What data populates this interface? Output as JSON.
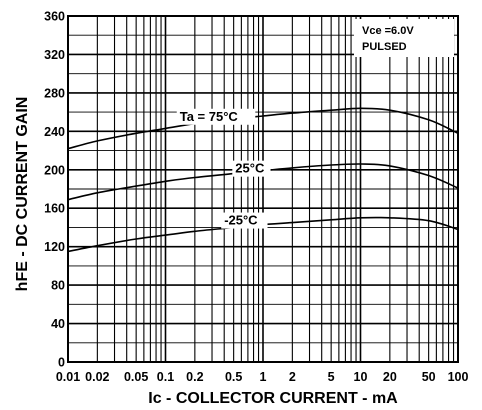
{
  "chart_data": {
    "type": "line",
    "title": "",
    "xlabel": "Ic - COLLECTOR CURRENT - mA",
    "ylabel": "hFE - DC CURRENT GAIN",
    "xscale": "log",
    "xlim": [
      0.01,
      100
    ],
    "ylim": [
      0,
      360
    ],
    "grid": true,
    "x_ticks": [
      {
        "value": 0.01,
        "label": "0.01"
      },
      {
        "value": 0.02,
        "label": "0.02"
      },
      {
        "value": 0.05,
        "label": "0.05"
      },
      {
        "value": 0.1,
        "label": "0.1"
      },
      {
        "value": 0.2,
        "label": "0.2"
      },
      {
        "value": 0.5,
        "label": "0.5"
      },
      {
        "value": 1,
        "label": "1"
      },
      {
        "value": 2,
        "label": "2"
      },
      {
        "value": 5,
        "label": "5"
      },
      {
        "value": 10,
        "label": "10"
      },
      {
        "value": 20,
        "label": "20"
      },
      {
        "value": 50,
        "label": "50"
      },
      {
        "value": 100,
        "label": "100"
      }
    ],
    "y_ticks": [
      0,
      40,
      80,
      120,
      160,
      200,
      240,
      280,
      320,
      360
    ],
    "conditions": [
      "Vce =6.0V",
      "PULSED"
    ],
    "series": [
      {
        "name": "Ta = 75°C",
        "x": [
          0.01,
          0.02,
          0.05,
          0.1,
          0.2,
          0.5,
          1,
          2,
          5,
          10,
          20,
          50,
          100
        ],
        "y": [
          222,
          230,
          238,
          243,
          248,
          253,
          256,
          259,
          262,
          264,
          262,
          252,
          238
        ]
      },
      {
        "name": "25°C",
        "x": [
          0.01,
          0.02,
          0.05,
          0.1,
          0.2,
          0.5,
          1,
          2,
          5,
          10,
          20,
          50,
          100
        ],
        "y": [
          169,
          176,
          183,
          188,
          192,
          196,
          199,
          202,
          205,
          206,
          204,
          194,
          181
        ]
      },
      {
        "name": "-25°C",
        "x": [
          0.01,
          0.02,
          0.05,
          0.1,
          0.2,
          0.5,
          1,
          2,
          5,
          10,
          20,
          50,
          100
        ],
        "y": [
          115,
          121,
          128,
          132,
          136,
          140,
          143,
          145,
          148,
          150,
          150,
          147,
          138
        ]
      }
    ]
  }
}
